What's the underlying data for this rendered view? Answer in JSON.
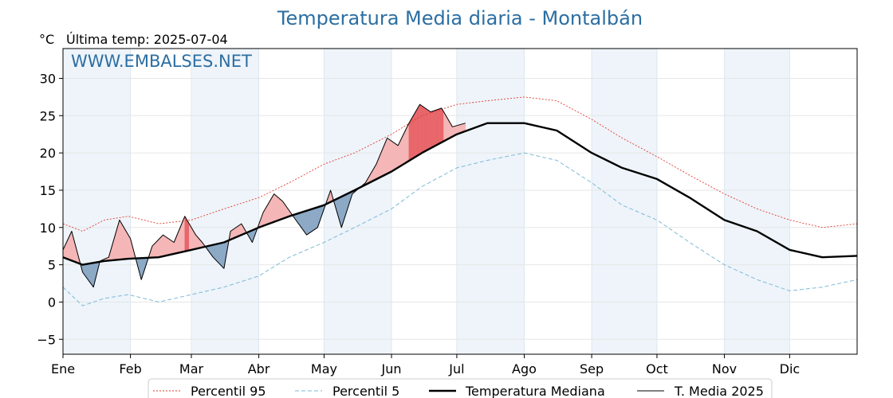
{
  "chart_data": {
    "type": "line",
    "title": "Temperatura Media diaria - Montalbán",
    "ylabel": "°C",
    "subtitle": "Última temp: 2025-07-04",
    "watermark": "WWW.EMBALSES.NET",
    "ylim": [
      -7,
      34
    ],
    "yticks": [
      30,
      25,
      20,
      15,
      10,
      5,
      0,
      -5
    ],
    "ytick_labels": [
      "30",
      "25",
      "20",
      "15",
      "10",
      "5",
      "0",
      "−5"
    ],
    "months": [
      "Ene",
      "Feb",
      "Mar",
      "Abr",
      "May",
      "Jun",
      "Jul",
      "Ago",
      "Sep",
      "Oct",
      "Nov",
      "Dic"
    ],
    "month_start_day": [
      1,
      32,
      60,
      91,
      121,
      152,
      182,
      213,
      244,
      274,
      305,
      335
    ],
    "x_domain": [
      1,
      366
    ],
    "series": [
      {
        "name": "Percentil 95",
        "color": "#e23b2e",
        "style": "dotted",
        "points": [
          [
            1,
            10.5
          ],
          [
            10,
            9.5
          ],
          [
            20,
            11.0
          ],
          [
            31,
            11.5
          ],
          [
            45,
            10.5
          ],
          [
            60,
            11.0
          ],
          [
            75,
            12.5
          ],
          [
            91,
            14.0
          ],
          [
            105,
            16.0
          ],
          [
            121,
            18.5
          ],
          [
            135,
            20.0
          ],
          [
            152,
            22.5
          ],
          [
            166,
            25.0
          ],
          [
            182,
            26.5
          ],
          [
            196,
            27.0
          ],
          [
            213,
            27.5
          ],
          [
            228,
            27.0
          ],
          [
            244,
            24.5
          ],
          [
            258,
            22.0
          ],
          [
            274,
            19.5
          ],
          [
            289,
            17.0
          ],
          [
            305,
            14.5
          ],
          [
            320,
            12.5
          ],
          [
            335,
            11.0
          ],
          [
            350,
            10.0
          ],
          [
            366,
            10.5
          ]
        ]
      },
      {
        "name": "Percentil 5",
        "color": "#7dbad6",
        "style": "dashed",
        "points": [
          [
            1,
            2.0
          ],
          [
            10,
            -0.5
          ],
          [
            20,
            0.5
          ],
          [
            31,
            1.0
          ],
          [
            45,
            0.0
          ],
          [
            60,
            1.0
          ],
          [
            75,
            2.0
          ],
          [
            91,
            3.5
          ],
          [
            105,
            6.0
          ],
          [
            121,
            8.0
          ],
          [
            135,
            10.0
          ],
          [
            152,
            12.5
          ],
          [
            166,
            15.5
          ],
          [
            182,
            18.0
          ],
          [
            196,
            19.0
          ],
          [
            213,
            20.0
          ],
          [
            228,
            19.0
          ],
          [
            244,
            16.0
          ],
          [
            258,
            13.0
          ],
          [
            274,
            11.0
          ],
          [
            289,
            8.0
          ],
          [
            305,
            5.0
          ],
          [
            320,
            3.0
          ],
          [
            335,
            1.5
          ],
          [
            350,
            2.0
          ],
          [
            366,
            3.0
          ]
        ]
      },
      {
        "name": "Temperatura Mediana",
        "color": "#000000",
        "style": "solid-thick",
        "points": [
          [
            1,
            6.0
          ],
          [
            10,
            5.0
          ],
          [
            20,
            5.5
          ],
          [
            31,
            5.8
          ],
          [
            45,
            6.0
          ],
          [
            60,
            7.0
          ],
          [
            75,
            8.0
          ],
          [
            91,
            10.0
          ],
          [
            105,
            11.5
          ],
          [
            121,
            13.0
          ],
          [
            135,
            15.0
          ],
          [
            152,
            17.5
          ],
          [
            166,
            20.0
          ],
          [
            182,
            22.5
          ],
          [
            196,
            24.0
          ],
          [
            213,
            24.0
          ],
          [
            228,
            23.0
          ],
          [
            244,
            20.0
          ],
          [
            258,
            18.0
          ],
          [
            274,
            16.5
          ],
          [
            289,
            14.0
          ],
          [
            305,
            11.0
          ],
          [
            320,
            9.5
          ],
          [
            335,
            7.0
          ],
          [
            350,
            6.0
          ],
          [
            366,
            6.2
          ]
        ]
      },
      {
        "name": "T. Media 2025",
        "color": "#000000",
        "style": "solid-thin",
        "points": [
          [
            1,
            7.0
          ],
          [
            5,
            9.5
          ],
          [
            10,
            4.0
          ],
          [
            15,
            2.0
          ],
          [
            18,
            5.5
          ],
          [
            22,
            6.0
          ],
          [
            27,
            11.0
          ],
          [
            32,
            8.5
          ],
          [
            37,
            3.0
          ],
          [
            42,
            7.5
          ],
          [
            47,
            9.0
          ],
          [
            52,
            8.0
          ],
          [
            57,
            11.5
          ],
          [
            62,
            9.0
          ],
          [
            65,
            8.0
          ],
          [
            70,
            6.0
          ],
          [
            75,
            4.5
          ],
          [
            78,
            9.5
          ],
          [
            83,
            10.5
          ],
          [
            88,
            8.0
          ],
          [
            93,
            12.0
          ],
          [
            98,
            14.5
          ],
          [
            102,
            13.5
          ],
          [
            108,
            11.0
          ],
          [
            113,
            9.0
          ],
          [
            118,
            10.0
          ],
          [
            124,
            15.0
          ],
          [
            129,
            10.0
          ],
          [
            134,
            14.5
          ],
          [
            140,
            16.0
          ],
          [
            145,
            18.5
          ],
          [
            150,
            22.0
          ],
          [
            155,
            21.0
          ],
          [
            160,
            24.0
          ],
          [
            165,
            26.5
          ],
          [
            170,
            25.5
          ],
          [
            175,
            26.0
          ],
          [
            180,
            23.5
          ],
          [
            186,
            24.0
          ]
        ]
      }
    ],
    "legend": [
      {
        "label": "Percentil 95"
      },
      {
        "label": "Percentil 5"
      },
      {
        "label": "Temperatura Mediana"
      },
      {
        "label": "T. Media 2025"
      }
    ],
    "colors": {
      "above_median": "#f4b6b6",
      "above_p95": "#e8676b",
      "below_median": "#8ca9c6",
      "below_p5": "#2f6fa3",
      "month_shade": "#eef4fa",
      "title": "#2c6ea2"
    },
    "legend_position": "bottom-center",
    "grid": true
  }
}
